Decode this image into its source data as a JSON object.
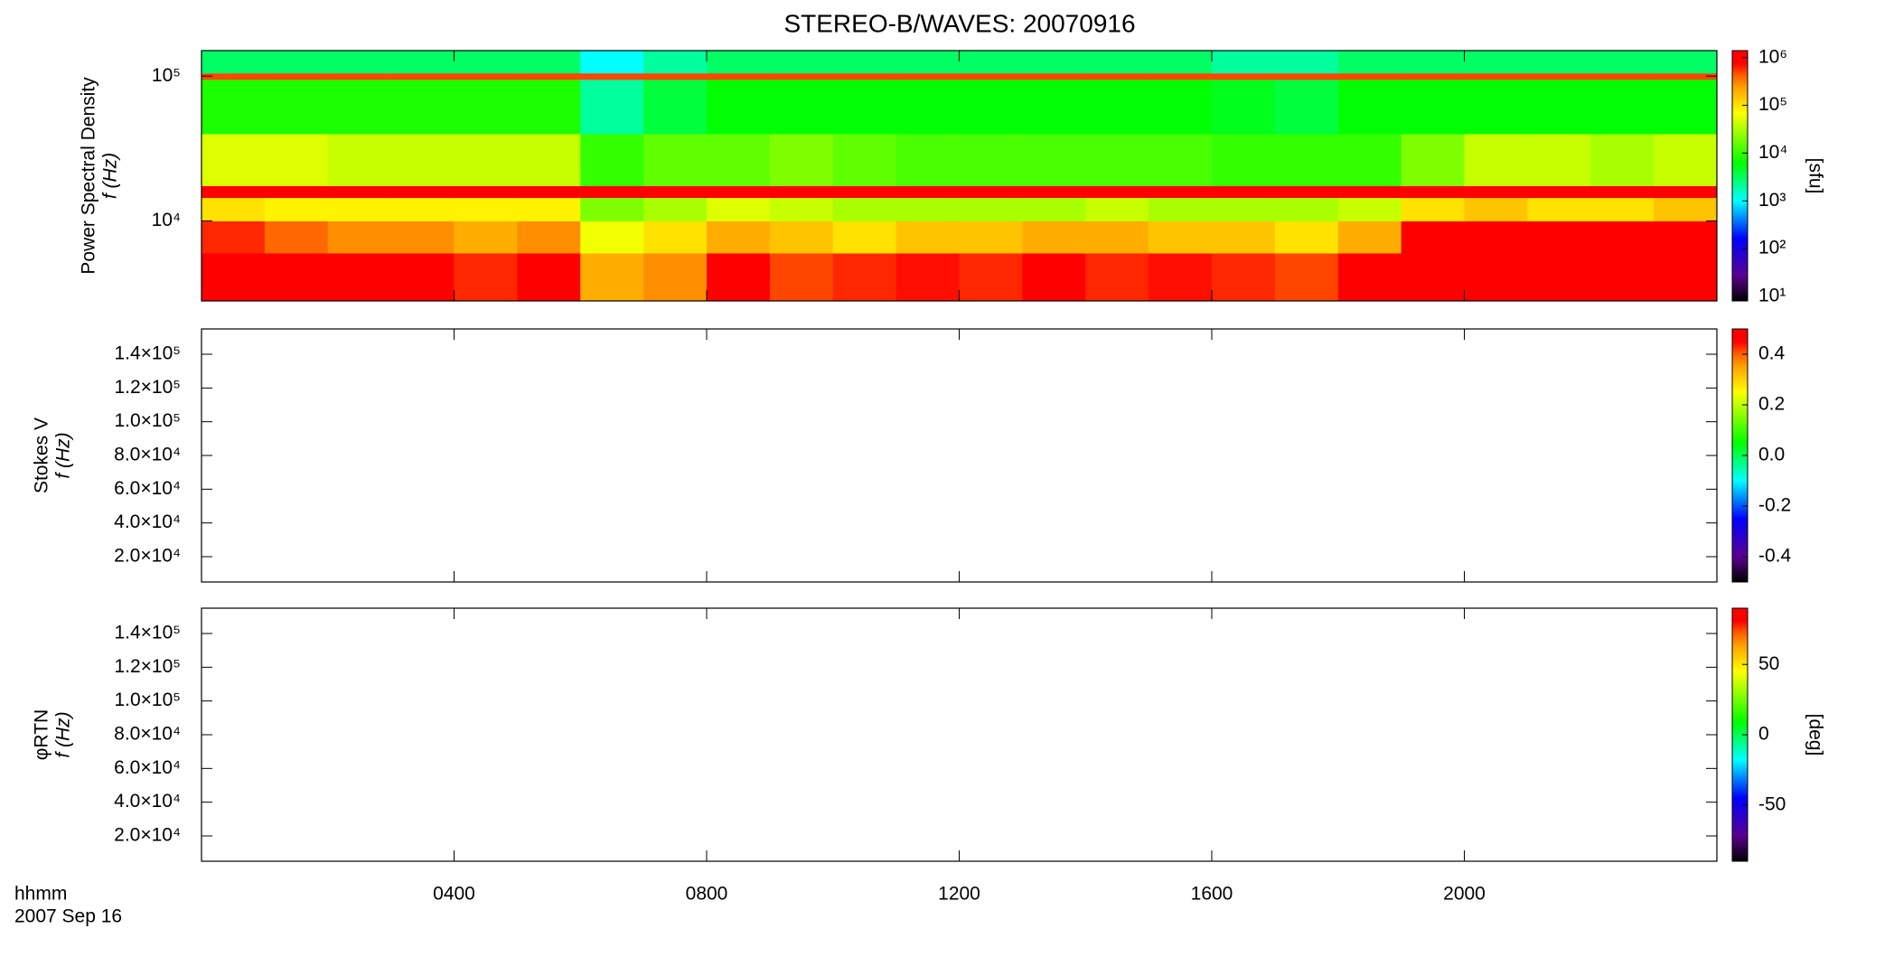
{
  "chart_data": [
    {
      "type": "spectrogram",
      "title": "STEREO-B/WAVES: 20070916",
      "y_label": "Power Spectral Density",
      "y_label_2": "f (Hz)",
      "ylog": true,
      "ylim": [
        2800,
        150000
      ],
      "yticks": [
        {
          "value": 10000,
          "label": "10⁴"
        },
        {
          "value": 100000,
          "label": "10⁵"
        }
      ],
      "xlim": [
        0,
        24
      ],
      "time_bins": [
        0,
        1,
        2,
        3,
        4,
        5,
        6,
        7,
        8,
        9,
        10,
        11,
        12,
        13,
        14,
        15,
        16,
        17,
        18,
        19,
        20,
        21,
        22,
        23,
        24
      ],
      "freq_bins": [
        2800,
        6000,
        10000,
        14500,
        17500,
        40000,
        95000,
        105000,
        150000
      ],
      "values": [
        [
          1000000,
          1000000,
          800000,
          1000000,
          600000,
          800000,
          200000,
          300000,
          800000,
          500000,
          600000,
          700000,
          600000,
          800000,
          600000,
          700000,
          600000,
          500000,
          800000,
          1000000,
          1000000,
          1000000,
          1000000,
          1000000
        ],
        [
          600000,
          400000,
          300000,
          300000,
          200000,
          300000,
          60000,
          100000,
          200000,
          150000,
          100000,
          150000,
          150000,
          200000,
          200000,
          150000,
          150000,
          100000,
          200000,
          1000000,
          1000000,
          1000000,
          800000,
          1000000
        ],
        [
          100000,
          80000,
          80000,
          80000,
          80000,
          80000,
          20000,
          30000,
          50000,
          40000,
          30000,
          30000,
          30000,
          30000,
          40000,
          30000,
          30000,
          30000,
          40000,
          100000,
          150000,
          100000,
          100000,
          150000
        ],
        [
          1000000,
          1000000,
          1000000,
          1000000,
          1000000,
          1000000,
          1000000,
          1000000,
          1000000,
          1000000,
          1000000,
          1000000,
          1000000,
          1000000,
          1000000,
          1000000,
          1000000,
          1000000,
          1000000,
          1000000,
          1000000,
          1000000,
          1000000,
          1000000
        ],
        [
          50000,
          50000,
          40000,
          40000,
          40000,
          40000,
          10000,
          15000,
          15000,
          20000,
          15000,
          12000,
          12000,
          12000,
          12000,
          12000,
          10000,
          10000,
          10000,
          20000,
          40000,
          40000,
          30000,
          40000
        ],
        [
          8000,
          8000,
          8000,
          8000,
          8000,
          8000,
          2000,
          4000,
          6000,
          6000,
          6000,
          6000,
          6000,
          6000,
          6000,
          6000,
          5000,
          4000,
          6000,
          6000,
          6000,
          6000,
          6000,
          6000
        ],
        [
          500000,
          500000,
          500000,
          500000,
          500000,
          500000,
          500000,
          500000,
          500000,
          500000,
          500000,
          500000,
          500000,
          500000,
          500000,
          500000,
          500000,
          500000,
          500000,
          500000,
          500000,
          500000,
          500000,
          500000
        ],
        [
          3000,
          3000,
          3000,
          3000,
          3000,
          3000,
          1000,
          2000,
          3000,
          3000,
          3000,
          3000,
          3000,
          3000,
          3000,
          3000,
          2000,
          2000,
          3000,
          3000,
          3000,
          3000,
          3000,
          3000
        ]
      ],
      "colorbar": {
        "log": true,
        "lim": [
          8,
          1400000
        ],
        "ticks": [
          {
            "value": 10,
            "label": "10¹"
          },
          {
            "value": 100,
            "label": "10²"
          },
          {
            "value": 1000,
            "label": "10³"
          },
          {
            "value": 10000,
            "label": "10⁴"
          },
          {
            "value": 100000,
            "label": "10⁵"
          },
          {
            "value": 1000000,
            "label": "10⁶"
          }
        ],
        "label": "[sfu]"
      }
    },
    {
      "type": "spectrogram",
      "y_label": "Stokes V",
      "y_label_2": "f (Hz)",
      "ylog": false,
      "ylim": [
        5000,
        155000
      ],
      "yticks": [
        {
          "value": 20000,
          "label": "2.0×10⁴"
        },
        {
          "value": 40000,
          "label": "4.0×10⁴"
        },
        {
          "value": 60000,
          "label": "6.0×10⁴"
        },
        {
          "value": 80000,
          "label": "8.0×10⁴"
        },
        {
          "value": 100000,
          "label": "1.0×10⁵"
        },
        {
          "value": 120000,
          "label": "1.2×10⁵"
        },
        {
          "value": 140000,
          "label": "1.4×10⁵"
        }
      ],
      "xlim": [
        0,
        24
      ],
      "colorbar": {
        "log": false,
        "lim": [
          -0.5,
          0.5
        ],
        "ticks": [
          -0.4,
          -0.2,
          {
            "value": 0,
            "label": "0.0"
          },
          0.2,
          0.4
        ]
      }
    },
    {
      "type": "spectrogram",
      "y_label": "φRTN",
      "y_label_2": "f (Hz)",
      "ylog": false,
      "ylim": [
        5000,
        155000
      ],
      "yticks": [
        {
          "value": 20000,
          "label": "2.0×10⁴"
        },
        {
          "value": 40000,
          "label": "4.0×10⁴"
        },
        {
          "value": 60000,
          "label": "6.0×10⁴"
        },
        {
          "value": 80000,
          "label": "8.0×10⁴"
        },
        {
          "value": 100000,
          "label": "1.0×10⁵"
        },
        {
          "value": 120000,
          "label": "1.2×10⁵"
        },
        {
          "value": 140000,
          "label": "1.4×10⁵"
        }
      ],
      "xlim": [
        0,
        24
      ],
      "xticks": [
        {
          "value": 4,
          "label": "0400"
        },
        {
          "value": 8,
          "label": "0800"
        },
        {
          "value": 12,
          "label": "1200"
        },
        {
          "value": 16,
          "label": "1600"
        },
        {
          "value": 20,
          "label": "2000"
        }
      ],
      "x_label": "hhmm",
      "x_label_2": "2007 Sep 16",
      "colorbar": {
        "log": false,
        "lim": [
          -90,
          90
        ],
        "ticks": [
          -50,
          0,
          50
        ],
        "label": "[deg]"
      }
    }
  ]
}
